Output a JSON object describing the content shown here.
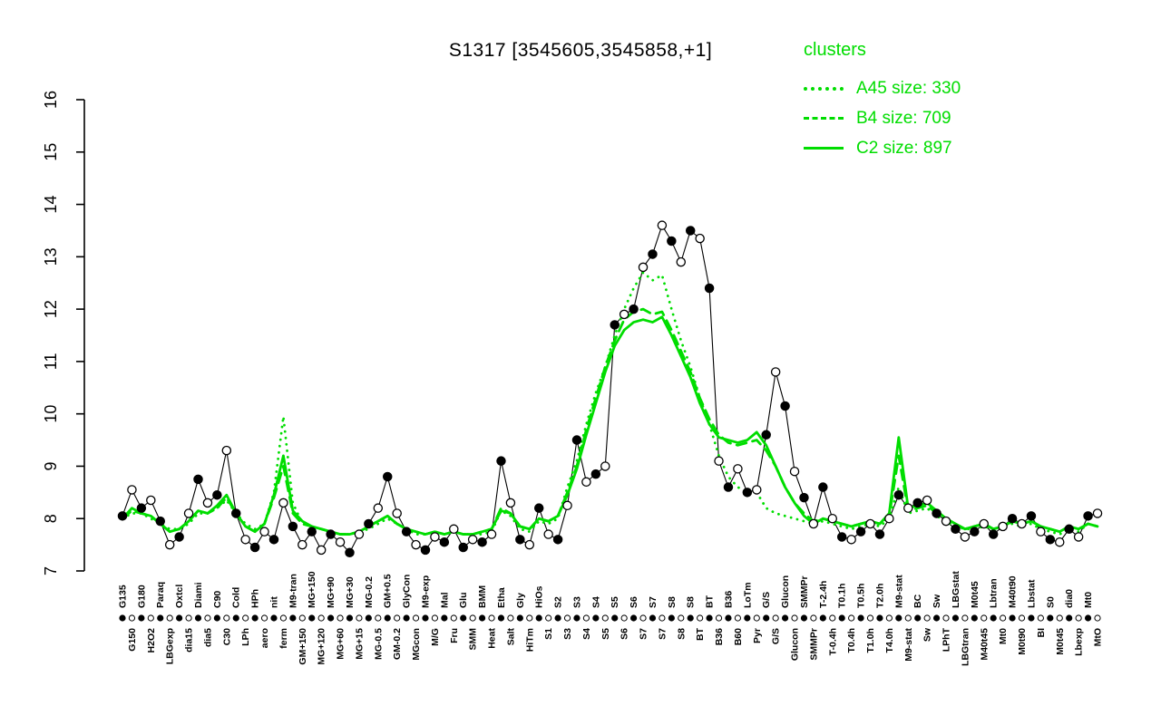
{
  "title": "S1317 [3545605,3545858,+1]",
  "legend": {
    "header": "clusters",
    "entries": [
      {
        "label": "A45 size: 330",
        "style": "dotted"
      },
      {
        "label": "B4 size: 709",
        "style": "dashed"
      },
      {
        "label": "C2 size: 897",
        "style": "solid"
      }
    ]
  },
  "colors": {
    "cluster_green": "#00dd00",
    "point_black": "#000000",
    "background": "#ffffff"
  },
  "chart_data": {
    "type": "line",
    "title": "S1317 [3545605,3545858,+1]",
    "xlabel": "",
    "ylabel": "",
    "ylim": [
      7,
      16
    ],
    "y_ticks": [
      7,
      8,
      9,
      10,
      11,
      12,
      13,
      14,
      15,
      16
    ],
    "grid": false,
    "legend_position": "top-right",
    "categories": [
      "G135",
      "G150",
      "G180",
      "H2O2",
      "Paraq",
      "LBGexp",
      "Oxtcl",
      "dia15",
      "Diami",
      "dia5",
      "C90",
      "C30",
      "Cold",
      "LPh",
      "HPh",
      "aero",
      "nit",
      "ferm",
      "M9-tran",
      "GM+150",
      "MG+150",
      "MG+120",
      "MG+90",
      "MG+60",
      "MG+30",
      "MG+15",
      "MG-0.2",
      "MG-0.5",
      "GM+0.5",
      "GM-0.2",
      "GlyCon",
      "MGcon",
      "M9-exp",
      "M/G",
      "Mal",
      "Fru",
      "Glu",
      "SMM",
      "BMM",
      "Heat",
      "Etha",
      "Salt",
      "Gly",
      "HiTm",
      "HiOs",
      "S1",
      "S2",
      "S3",
      "S3",
      "S4",
      "S4",
      "S5",
      "S5",
      "S6",
      "S6",
      "S7",
      "S7",
      "S7",
      "S8",
      "S8",
      "S8",
      "BT",
      "BT",
      "B36",
      "B36",
      "B60",
      "LoTm",
      "Pyr",
      "G/S",
      "G/S",
      "Glucon",
      "Glucon",
      "SMMPr",
      "SMMPr",
      "T-2.4h",
      "T-0.4h",
      "T0.1h",
      "T0.4h",
      "T0.5h",
      "T1.0h",
      "T2.0h",
      "T4.0h",
      "M9-stat",
      "M9-stat",
      "BC",
      "Sw",
      "Sw",
      "LPhT",
      "LBGstat",
      "LBGtran",
      "M0t45",
      "M40t45",
      "Lbtran",
      "Mt0",
      "M40t90",
      "M0t90",
      "Lbstat",
      "BI",
      "S0",
      "M0t45",
      "dia0",
      "Lbexp",
      "Mt0",
      "MtO"
    ],
    "series": [
      {
        "name": "expression",
        "style": "points",
        "color": "#000000",
        "values": [
          8.05,
          8.55,
          8.2,
          8.35,
          7.95,
          7.5,
          7.65,
          8.1,
          8.75,
          8.3,
          8.45,
          9.3,
          8.1,
          7.6,
          7.45,
          7.75,
          7.6,
          8.3,
          7.85,
          7.5,
          7.75,
          7.4,
          7.7,
          7.55,
          7.35,
          7.7,
          7.9,
          8.2,
          8.8,
          8.1,
          7.75,
          7.5,
          7.4,
          7.65,
          7.55,
          7.8,
          7.45,
          7.6,
          7.55,
          7.7,
          9.1,
          8.3,
          7.6,
          7.5,
          8.2,
          7.7,
          7.6,
          8.25,
          9.5,
          8.7,
          8.85,
          9.0,
          11.7,
          11.9,
          12.0,
          12.8,
          13.05,
          13.6,
          13.3,
          12.9,
          13.5,
          13.35,
          12.4,
          9.1,
          8.6,
          8.95,
          8.5,
          8.55,
          9.6,
          10.8,
          10.15,
          8.9,
          8.4,
          7.9,
          8.6,
          8.0,
          7.65,
          7.6,
          7.75,
          7.9,
          7.7,
          8.0,
          8.45,
          8.2,
          8.3,
          8.35,
          8.1,
          7.95,
          7.8,
          7.65,
          7.75,
          7.9,
          7.7,
          7.85,
          8.0,
          7.9,
          8.05,
          7.75,
          7.6,
          7.55,
          7.8,
          7.65,
          8.05,
          8.1
        ]
      },
      {
        "name": "A45",
        "size": 330,
        "style": "dotted",
        "color": "#00dd00",
        "values": [
          8.0,
          8.1,
          8.1,
          8.0,
          7.9,
          7.8,
          7.8,
          7.9,
          8.1,
          8.1,
          8.2,
          8.35,
          8.1,
          7.9,
          7.8,
          7.9,
          8.5,
          9.95,
          8.3,
          7.9,
          7.85,
          7.8,
          7.75,
          7.7,
          7.7,
          7.75,
          7.8,
          7.9,
          8.0,
          7.9,
          7.8,
          7.7,
          7.7,
          7.75,
          7.7,
          7.75,
          7.7,
          7.7,
          7.7,
          7.75,
          8.15,
          8.05,
          7.8,
          7.75,
          7.95,
          7.9,
          8.0,
          8.6,
          9.1,
          9.8,
          10.4,
          10.9,
          11.5,
          12.0,
          12.4,
          12.7,
          12.55,
          12.65,
          12.0,
          11.4,
          10.9,
          10.3,
          9.8,
          9.2,
          8.8,
          8.6,
          8.5,
          8.5,
          8.2,
          8.1,
          8.05,
          8.0,
          7.95,
          7.9,
          7.95,
          7.9,
          7.85,
          7.8,
          7.85,
          7.9,
          7.85,
          8.0,
          8.6,
          8.1,
          8.15,
          8.2,
          8.05,
          7.95,
          7.85,
          7.8,
          7.8,
          7.85,
          7.8,
          7.85,
          7.9,
          7.85,
          7.9,
          7.8,
          7.75,
          7.7,
          7.8,
          7.75,
          7.9,
          7.85
        ]
      },
      {
        "name": "B4",
        "size": 709,
        "style": "dashed",
        "color": "#00dd00",
        "values": [
          8.0,
          8.15,
          8.1,
          8.05,
          7.9,
          7.75,
          7.8,
          7.95,
          8.15,
          8.1,
          8.2,
          8.4,
          8.1,
          7.85,
          7.75,
          7.9,
          8.4,
          9.0,
          8.1,
          7.9,
          7.85,
          7.8,
          7.75,
          7.7,
          7.7,
          7.75,
          7.85,
          7.95,
          8.05,
          7.9,
          7.8,
          7.75,
          7.7,
          7.75,
          7.7,
          7.75,
          7.7,
          7.7,
          7.75,
          7.8,
          8.2,
          8.1,
          7.85,
          7.8,
          8.0,
          7.95,
          8.05,
          8.5,
          9.0,
          9.7,
          10.3,
          10.9,
          11.4,
          11.8,
          11.95,
          12.0,
          11.9,
          11.95,
          11.6,
          11.2,
          10.8,
          10.3,
          9.9,
          9.6,
          9.45,
          9.4,
          9.45,
          9.5,
          9.3,
          9.0,
          8.6,
          8.3,
          8.1,
          7.95,
          8.0,
          7.95,
          7.9,
          7.85,
          7.9,
          7.95,
          7.9,
          8.05,
          9.2,
          8.15,
          8.2,
          8.25,
          8.1,
          8.0,
          7.9,
          7.8,
          7.85,
          7.9,
          7.8,
          7.85,
          7.95,
          7.9,
          7.95,
          7.85,
          7.8,
          7.75,
          7.85,
          7.8,
          7.9,
          7.85
        ]
      },
      {
        "name": "C2",
        "size": 897,
        "style": "solid",
        "color": "#00dd00",
        "values": [
          8.0,
          8.2,
          8.1,
          8.05,
          7.9,
          7.75,
          7.8,
          7.95,
          8.15,
          8.1,
          8.25,
          8.45,
          8.1,
          7.85,
          7.75,
          7.9,
          8.45,
          9.2,
          8.15,
          7.95,
          7.85,
          7.8,
          7.75,
          7.7,
          7.7,
          7.75,
          7.85,
          7.95,
          8.05,
          7.9,
          7.8,
          7.75,
          7.7,
          7.75,
          7.7,
          7.75,
          7.7,
          7.7,
          7.75,
          7.8,
          8.15,
          8.1,
          7.85,
          7.8,
          8.0,
          7.95,
          8.05,
          8.45,
          8.95,
          9.6,
          10.2,
          10.8,
          11.3,
          11.6,
          11.75,
          11.8,
          11.75,
          11.85,
          11.5,
          11.1,
          10.7,
          10.2,
          9.8,
          9.55,
          9.5,
          9.45,
          9.5,
          9.65,
          9.4,
          9.0,
          8.6,
          8.3,
          8.05,
          7.9,
          8.0,
          7.95,
          7.9,
          7.85,
          7.9,
          7.95,
          7.9,
          8.1,
          9.55,
          8.2,
          8.25,
          8.3,
          8.15,
          8.0,
          7.9,
          7.8,
          7.85,
          7.9,
          7.8,
          7.85,
          7.95,
          7.9,
          7.95,
          7.85,
          7.8,
          7.75,
          7.85,
          7.8,
          7.9,
          7.85
        ]
      }
    ]
  }
}
